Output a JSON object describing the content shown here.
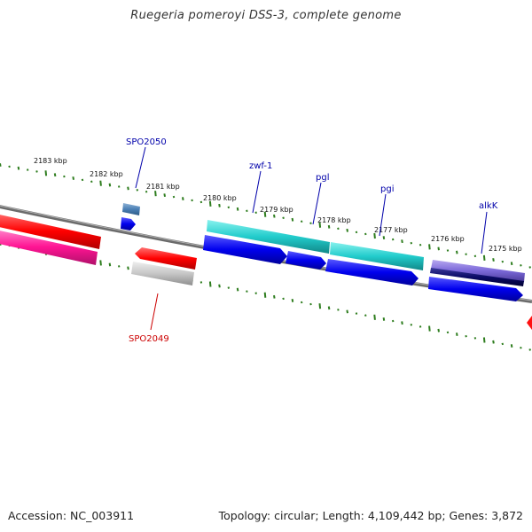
{
  "title": "Ruegeria pomeroyi DSS-3, complete genome",
  "footer": {
    "accession": "Accession: NC_003911",
    "summary": "Topology: circular; Length: 4,109,442 bp; Genes: 3,872"
  },
  "ruler": [
    "2183 kbp",
    "2182 kbp",
    "2181 kbp",
    "2180 kbp",
    "2179 kbp",
    "2178 kbp",
    "2177 kbp",
    "2176 kbp",
    "2175 kbp"
  ],
  "genes": {
    "spo2050": "SPO2050",
    "zwf1": "zwf-1",
    "pgl": "pgl",
    "pgi": "pgi",
    "alkK": "alkK",
    "spo2049": "SPO2049"
  },
  "colors": {
    "forward_label": "#0000aa",
    "reverse_label": "#cc0000",
    "tick": "#2e7d1e",
    "backbone": "#777777"
  }
}
